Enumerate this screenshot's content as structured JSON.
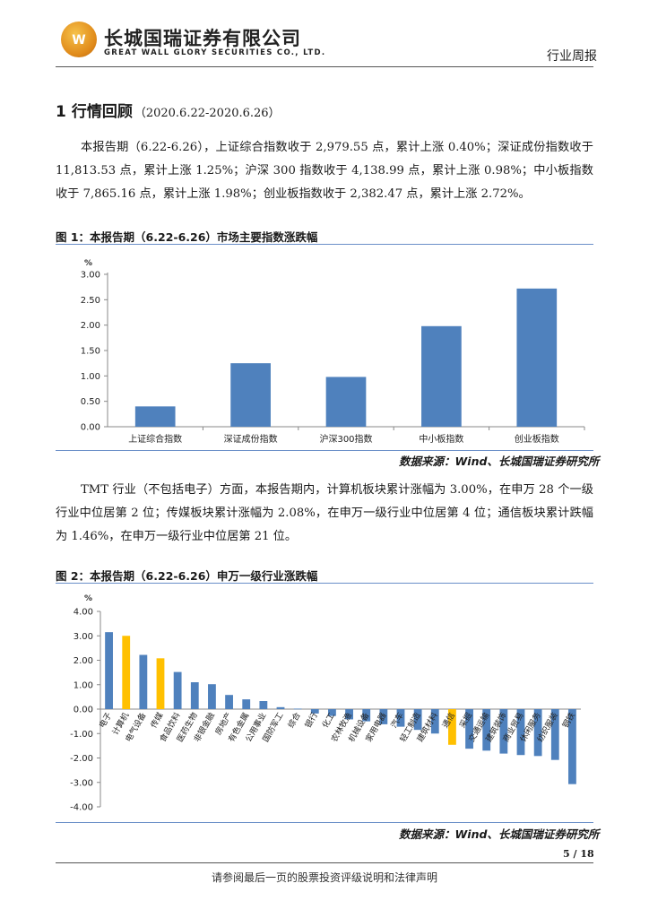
{
  "header": {
    "company_cn": "长城国瑞证券有限公司",
    "company_en": "GREAT WALL GLORY SECURITIES CO., LTD.",
    "report_type": "行业周报"
  },
  "section": {
    "number": "1",
    "title": "行情回顾",
    "period": "（2020.6.22-2020.6.26）"
  },
  "paragraph1": "本报告期（6.22-6.26），上证综合指数收于 2,979.55 点，累计上涨 0.40%；深证成份指数收于 11,813.53 点，累计上涨 1.25%；沪深 300 指数收于 4,138.99 点，累计上涨 0.98%；中小板指数收于 7,865.16 点，累计上涨 1.98%；创业板指数收于 2,382.47 点，累计上涨 2.72%。",
  "paragraph2": "TMT 行业（不包括电子）方面，本报告期内，计算机板块累计涨幅为 3.00%，在申万 28 个一级行业中位居第 2 位；传媒板块累计涨幅为 2.08%，在申万一级行业中位居第 4 位；通信板块累计跌幅为 1.46%，在申万一级行业中位居第 21 位。",
  "figure1": {
    "title": "图 1：本报告期（6.22-6.26）市场主要指数涨跌幅",
    "source": "数据来源：Wind、长城国瑞证券研究所"
  },
  "figure2": {
    "title": "图 2：本报告期（6.22-6.26）申万一级行业涨跌幅",
    "source": "数据来源：Wind、长城国瑞证券研究所"
  },
  "colors": {
    "bar": "#4f81bd",
    "highlight": "#ffc000"
  },
  "chart_data": [
    {
      "type": "bar",
      "ylabel": "%",
      "ylim": [
        0,
        3
      ],
      "yticks": [
        "0.00",
        "0.50",
        "1.00",
        "1.50",
        "2.00",
        "2.50",
        "3.00"
      ],
      "categories": [
        "上证综合指数",
        "深证成份指数",
        "沪深300指数",
        "中小板指数",
        "创业板指数"
      ],
      "values": [
        0.4,
        1.25,
        0.98,
        1.98,
        2.72
      ],
      "grid": false,
      "legend": "none"
    },
    {
      "type": "bar",
      "ylabel": "%",
      "ylim": [
        -4,
        4
      ],
      "yticks": [
        "4.00",
        "3.00",
        "2.00",
        "1.00",
        "0.00",
        "-1.00",
        "-2.00",
        "-3.00",
        "-4.00"
      ],
      "categories": [
        "电子",
        "计算机",
        "电气设备",
        "传媒",
        "食品饮料",
        "医药生物",
        "非银金融",
        "房地产",
        "有色金属",
        "公用事业",
        "国防军工",
        "综合",
        "银行",
        "化工",
        "农林牧渔",
        "机械设备",
        "家用电器",
        "汽车",
        "轻工制造",
        "建筑材料",
        "通信",
        "采掘",
        "交通运输",
        "建筑装饰",
        "商业贸易",
        "休闲服务",
        "纺织服装",
        "钢铁"
      ],
      "values": [
        3.15,
        3.0,
        2.22,
        2.08,
        1.52,
        1.1,
        1.02,
        0.58,
        0.4,
        0.33,
        0.08,
        0.02,
        -0.18,
        -0.28,
        -0.42,
        -0.5,
        -0.62,
        -0.72,
        -0.85,
        -1.0,
        -1.46,
        -1.62,
        -1.7,
        -1.82,
        -1.88,
        -1.92,
        -2.08,
        -3.07
      ],
      "highlight": [
        "计算机",
        "传媒",
        "通信"
      ],
      "grid": false,
      "legend": "none"
    }
  ],
  "footer": {
    "page": "5 / 18",
    "disclaimer": "请参阅最后一页的股票投资评级说明和法律声明"
  }
}
